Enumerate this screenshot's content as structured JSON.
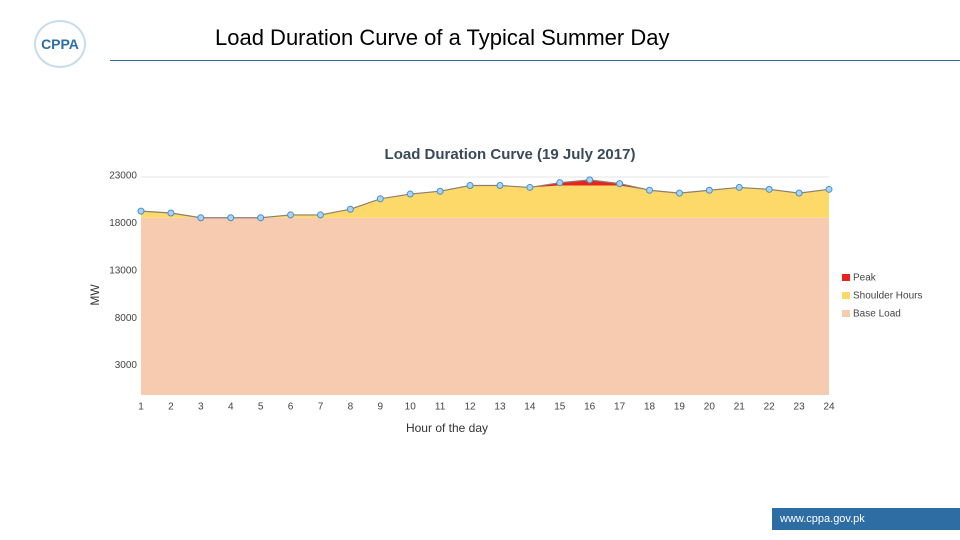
{
  "slide": {
    "title": "Load Duration Curve of a Typical Summer Day",
    "logo": "CPPA",
    "footer": "www.cppa.gov.pk"
  },
  "chart_data": {
    "type": "stacked-area",
    "title": "Load Duration Curve (19 July 2017)",
    "x_label": "Hour of the day",
    "y_label": "MW",
    "x": [
      1,
      2,
      3,
      4,
      5,
      6,
      7,
      8,
      9,
      10,
      11,
      12,
      13,
      14,
      15,
      16,
      17,
      18,
      19,
      20,
      21,
      22,
      23,
      24
    ],
    "xlim": [
      1,
      24
    ],
    "xticks": [
      1,
      2,
      3,
      4,
      5,
      6,
      7,
      8,
      9,
      10,
      11,
      12,
      13,
      14,
      15,
      16,
      17,
      18,
      19,
      20,
      21,
      22,
      23,
      24
    ],
    "ylim": [
      0,
      23000
    ],
    "yticks": [
      3000,
      8000,
      13000,
      18000,
      23000
    ],
    "grid": true,
    "legend": "right",
    "series": [
      {
        "name": "Base Load",
        "color": "#f6cbb0",
        "values": [
          18700,
          18700,
          18700,
          18700,
          18700,
          18700,
          18700,
          18700,
          18700,
          18700,
          18700,
          18700,
          18700,
          18700,
          18700,
          18700,
          18700,
          18700,
          18700,
          18700,
          18700,
          18700,
          18700,
          18700
        ]
      },
      {
        "name": "Shoulder Hours",
        "color": "#fdd96a",
        "values": [
          700,
          500,
          0,
          0,
          0,
          300,
          300,
          900,
          2000,
          2500,
          2800,
          3400,
          3400,
          3200,
          3400,
          3400,
          3400,
          2900,
          2600,
          2900,
          3200,
          3000,
          2600,
          3000
        ]
      },
      {
        "name": "Peak",
        "color": "#e8231f",
        "values": [
          0,
          0,
          0,
          0,
          0,
          0,
          0,
          0,
          0,
          0,
          0,
          0,
          0,
          0,
          300,
          600,
          200,
          0,
          0,
          0,
          0,
          0,
          0,
          0
        ]
      }
    ]
  }
}
